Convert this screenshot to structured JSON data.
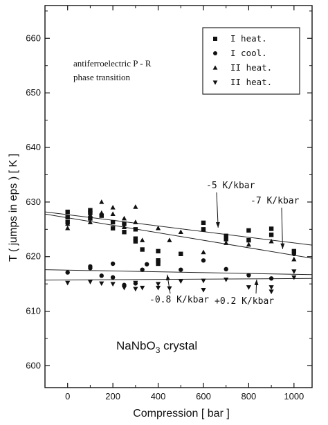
{
  "chart_data": {
    "type": "scatter",
    "title": "",
    "xlabel": "Compression  [ bar ]",
    "ylabel": "T  ( jumps in eps )  [ K ]",
    "xlim": [
      -100,
      1080
    ],
    "ylim": [
      596,
      666
    ],
    "x_ticks": [
      0,
      200,
      400,
      600,
      800,
      1000
    ],
    "y_ticks": [
      600,
      610,
      620,
      630,
      640,
      650,
      660
    ],
    "x_tick_labels": [
      "0",
      "200",
      "400",
      "600",
      "800",
      "1000"
    ],
    "y_tick_labels": [
      "600",
      "610",
      "620",
      "630",
      "640",
      "650",
      "660"
    ],
    "grid": false,
    "legend_position": "top-right",
    "series": [
      {
        "name": "I heat.",
        "marker": "square",
        "points": [
          [
            0,
            628.2
          ],
          [
            0,
            627.2
          ],
          [
            0,
            626.3
          ],
          [
            100,
            628.5
          ],
          [
            100,
            628.0
          ],
          [
            100,
            627.0
          ],
          [
            150,
            627.5
          ],
          [
            200,
            626.3
          ],
          [
            200,
            625.2
          ],
          [
            250,
            626.0
          ],
          [
            250,
            624.5
          ],
          [
            300,
            625.0
          ],
          [
            300,
            623.3
          ],
          [
            300,
            622.8
          ],
          [
            330,
            621.3
          ],
          [
            400,
            621.0
          ],
          [
            400,
            619.3
          ],
          [
            400,
            618.7
          ],
          [
            500,
            620.5
          ],
          [
            600,
            626.2
          ],
          [
            600,
            625.0
          ],
          [
            700,
            623.8
          ],
          [
            700,
            623.2
          ],
          [
            800,
            624.8
          ],
          [
            800,
            623.0
          ],
          [
            900,
            625.1
          ],
          [
            900,
            624.0
          ],
          [
            1000,
            621.0
          ]
        ]
      },
      {
        "name": "I cool.",
        "marker": "circle",
        "points": [
          [
            0,
            617.1
          ],
          [
            100,
            617.9
          ],
          [
            100,
            618.2
          ],
          [
            150,
            616.5
          ],
          [
            200,
            618.7
          ],
          [
            200,
            616.2
          ],
          [
            250,
            614.8
          ],
          [
            300,
            615.1
          ],
          [
            330,
            617.6
          ],
          [
            350,
            618.6
          ],
          [
            400,
            619.2
          ],
          [
            500,
            617.6
          ],
          [
            600,
            619.3
          ],
          [
            700,
            617.7
          ],
          [
            800,
            616.6
          ],
          [
            900,
            616.0
          ],
          [
            1000,
            620.5
          ]
        ]
      },
      {
        "name": "II heat.",
        "marker": "triangle-up",
        "points": [
          [
            0,
            626.0
          ],
          [
            0,
            625.2
          ],
          [
            100,
            627.6
          ],
          [
            100,
            626.3
          ],
          [
            150,
            630.0
          ],
          [
            150,
            628.0
          ],
          [
            200,
            629.0
          ],
          [
            200,
            627.8
          ],
          [
            250,
            627.0
          ],
          [
            250,
            625.4
          ],
          [
            300,
            629.1
          ],
          [
            300,
            626.3
          ],
          [
            330,
            623.0
          ],
          [
            400,
            625.2
          ],
          [
            450,
            623.0
          ],
          [
            500,
            624.5
          ],
          [
            600,
            620.8
          ],
          [
            700,
            622.5
          ],
          [
            800,
            622.2
          ],
          [
            900,
            622.8
          ],
          [
            1000,
            619.5
          ]
        ]
      },
      {
        "name": "II heat.",
        "marker": "triangle-down",
        "points": [
          [
            0,
            615.2
          ],
          [
            100,
            615.4
          ],
          [
            150,
            615.1
          ],
          [
            200,
            615.0
          ],
          [
            250,
            614.3
          ],
          [
            300,
            615.2
          ],
          [
            300,
            614.1
          ],
          [
            330,
            614.3
          ],
          [
            400,
            615.0
          ],
          [
            400,
            614.3
          ],
          [
            450,
            614.2
          ],
          [
            500,
            615.5
          ],
          [
            600,
            613.9
          ],
          [
            600,
            615.6
          ],
          [
            700,
            615.8
          ],
          [
            800,
            614.4
          ],
          [
            900,
            613.6
          ],
          [
            900,
            614.4
          ],
          [
            1000,
            617.3
          ],
          [
            1000,
            616.2
          ]
        ]
      }
    ],
    "fit_lines": [
      {
        "label": "-5 K/kbar",
        "x": [
          -100,
          1080
        ],
        "y": [
          628.2,
          622.1
        ]
      },
      {
        "label": "-7 K/kbar",
        "x": [
          -100,
          1080
        ],
        "y": [
          627.8,
          619.7
        ]
      },
      {
        "label": "-0.8 K/kbar",
        "x": [
          -100,
          1080
        ],
        "y": [
          617.6,
          616.7
        ]
      },
      {
        "label": "+0.2 K/kbar",
        "x": [
          -100,
          1080
        ],
        "y": [
          615.7,
          616.0
        ]
      }
    ],
    "annotations": [
      {
        "text": "-5 K/kbar",
        "arrow_to": [
          665,
          625.3
        ]
      },
      {
        "text": "-7 K/kbar",
        "arrow_to": [
          950,
          621.4
        ]
      },
      {
        "text": "-0.8 K/kbar",
        "arrow_to": [
          440,
          616.7
        ]
      },
      {
        "text": "+0.2 K/kbar",
        "arrow_to": [
          835,
          615.8
        ]
      }
    ],
    "inner_text": {
      "line1": "antiferroelectric P - R",
      "line2": "phase transition",
      "crystal": "NaNbO",
      "crystal_sub": "3",
      "crystal_tail": " crystal"
    }
  }
}
